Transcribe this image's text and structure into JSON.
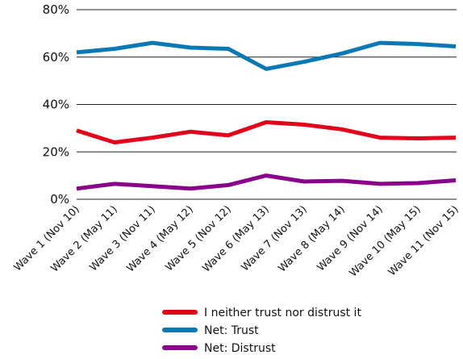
{
  "chart_data": {
    "type": "line",
    "title": "",
    "xlabel": "",
    "ylabel": "",
    "categories": [
      "Wave 1 (Nov 10)",
      "Wave 2 (May 11)",
      "Wave 3 (Nov 11)",
      "Wave 4 (May 12)",
      "Wave 5 (Nov 12)",
      "Wave 6 (May 13)",
      "Wave 7 (Nov 13)",
      "Wave 8 (May 14)",
      "Wave 9 (Nov 14)",
      "Wave 10 (May 15)",
      "Wave 11 (Nov 15)"
    ],
    "yticks": [
      "0%",
      "20%",
      "40%",
      "60%",
      "80%"
    ],
    "ylim": [
      0,
      80
    ],
    "grid": "horizontal",
    "legend_position": "bottom",
    "series": [
      {
        "name": "I neither trust nor distrust it",
        "color": "#e3001b",
        "values": [
          29,
          24,
          26,
          28.5,
          27,
          32.5,
          31.5,
          29.5,
          26,
          25.7,
          26
        ]
      },
      {
        "name": "Net: Trust",
        "color": "#0a78b4",
        "values": [
          62,
          63.5,
          66,
          64,
          63.5,
          55,
          58,
          61.5,
          66,
          65.5,
          64.5
        ]
      },
      {
        "name": "Net: Distrust",
        "color": "#8b008b",
        "values": [
          4.5,
          6.5,
          5.5,
          4.5,
          6,
          10,
          7.5,
          7.8,
          6.5,
          6.8,
          8
        ]
      }
    ]
  }
}
